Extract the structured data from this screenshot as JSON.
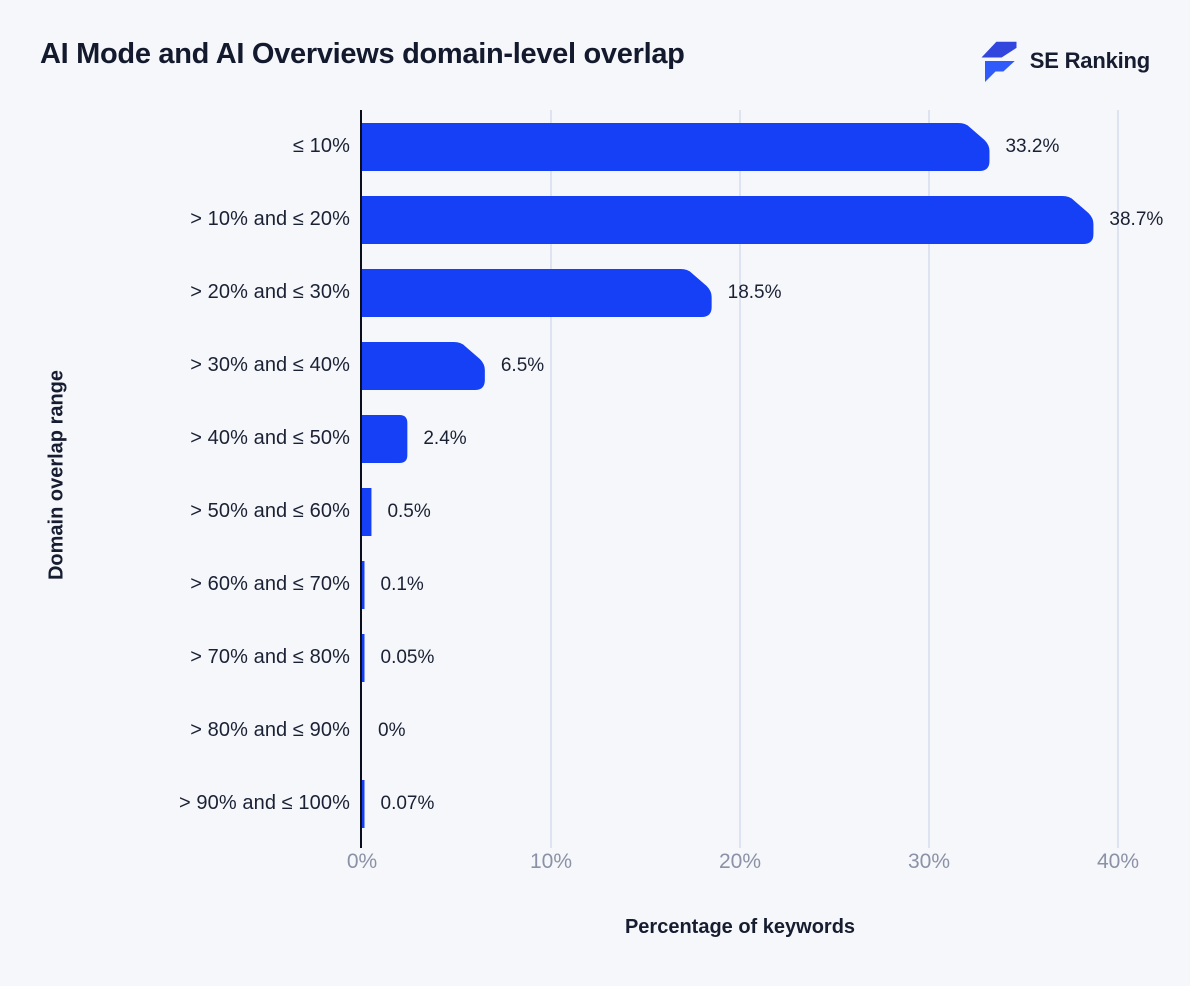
{
  "header": {
    "title": "AI Mode and AI Overviews domain-level overlap",
    "brand_name": "SE Ranking"
  },
  "chart_data": {
    "type": "bar",
    "orientation": "horizontal",
    "title": "AI Mode and AI Overviews domain-level overlap",
    "xlabel": "Percentage of keywords",
    "ylabel": "Domain overlap range",
    "categories": [
      "≤ 10%",
      "> 10% and ≤ 20%",
      "> 20% and ≤ 30%",
      "> 30% and ≤ 40%",
      "> 40% and ≤ 50%",
      "> 50% and ≤ 60%",
      "> 60% and ≤ 70%",
      "> 70% and ≤ 80%",
      "> 80% and ≤ 90%",
      "> 90% and ≤ 100%"
    ],
    "values": [
      33.2,
      38.7,
      18.5,
      6.5,
      2.4,
      0.5,
      0.1,
      0.05,
      0,
      0.07
    ],
    "value_labels": [
      "33.2%",
      "38.7%",
      "18.5%",
      "6.5%",
      "2.4%",
      "0.5%",
      "0.1%",
      "0.05%",
      "0%",
      "0.07%"
    ],
    "x_ticks": [
      "0%",
      "10%",
      "20%",
      "30%",
      "40%"
    ],
    "xlim": [
      0,
      40
    ],
    "grid": "vertical-gridlines-at-10pct",
    "legend": "none",
    "colors": {
      "bar": "#1540f5",
      "background": "#f6f7fa",
      "gridline": "#dde3f0",
      "axis_line": "#0a0e1c",
      "tick_text": "#8b92a7",
      "text": "#1a2134",
      "logo_blue_top": "#3246dd",
      "logo_blue_bottom": "#2e5bfa"
    }
  }
}
